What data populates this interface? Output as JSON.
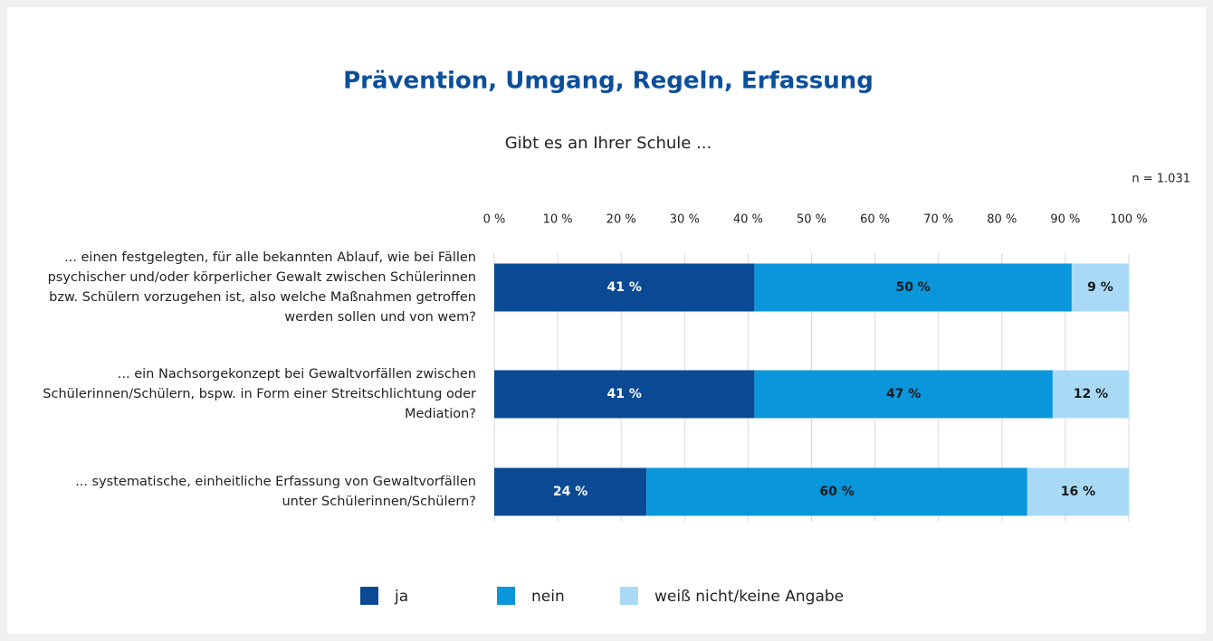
{
  "chart_data": {
    "type": "stacked_barh",
    "title": "Prävention, Umgang, Regeln, Erfassung",
    "subtitle": "Gibt es an Ihrer Schule ...",
    "annotation": "n = 1.031",
    "categories": [
      "... einen festgelegten, für alle bekannten Ablauf, wie bei Fällen psychischer und/oder körperlicher Gewalt zwischen Schülerinnen bzw. Schülern vorzugehen ist, also welche Maßnahmen getroffen werden sollen und von wem?",
      "... ein Nachsorgekonzept bei Gewaltvorfällen zwischen Schülerinnen/Schülern, bspw. in Form einer Streitschlichtung oder Mediation?",
      "... systematische, einheitliche Erfassung von Gewaltvorfällen unter Schülerinnen/Schülern?"
    ],
    "series": [
      {
        "name": "ja",
        "color": "#0a4a94",
        "values": [
          41,
          41,
          24
        ],
        "value_labels": [
          "41 %",
          "41 %",
          "24 %"
        ]
      },
      {
        "name": "nein",
        "color": "#0a96db",
        "values": [
          50,
          47,
          60
        ],
        "value_labels": [
          "50 %",
          "47 %",
          "60 %"
        ]
      },
      {
        "name": "weiß nicht/keine Angabe",
        "color": "#a8daf6",
        "values": [
          9,
          12,
          16
        ],
        "value_labels": [
          "9 %",
          "12 %",
          "16 %"
        ]
      }
    ],
    "xlim": [
      0,
      100
    ],
    "xticks": [
      {
        "value": 0,
        "label": "0 %"
      },
      {
        "value": 10,
        "label": "10 %"
      },
      {
        "value": 20,
        "label": "20 %"
      },
      {
        "value": 30,
        "label": "30 %"
      },
      {
        "value": 40,
        "label": "40 %"
      },
      {
        "value": 50,
        "label": "50 %"
      },
      {
        "value": 60,
        "label": "60 %"
      },
      {
        "value": 70,
        "label": "70 %"
      },
      {
        "value": 80,
        "label": "80 %"
      },
      {
        "value": 90,
        "label": "90 %"
      },
      {
        "value": 100,
        "label": "100 %"
      }
    ],
    "grid": true,
    "legend": "bottom"
  }
}
